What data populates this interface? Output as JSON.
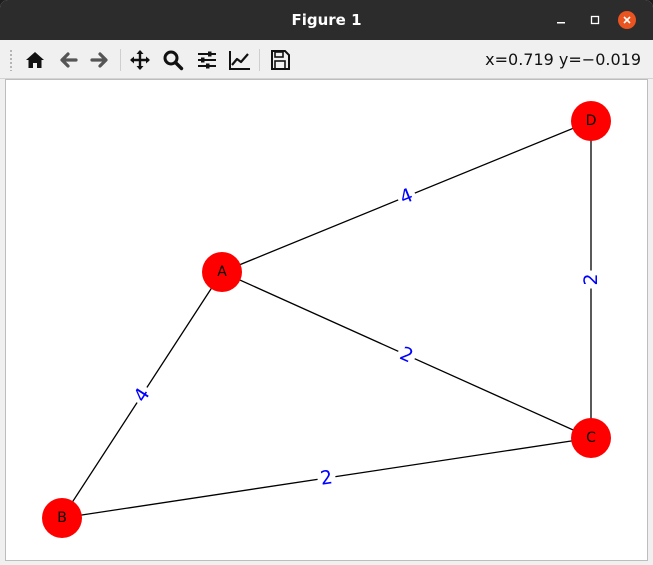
{
  "window": {
    "title": "Figure 1",
    "minimize_icon": "minimize-icon",
    "maximize_icon": "maximize-icon",
    "close_icon": "close-icon",
    "close_color": "#e95420"
  },
  "toolbar": {
    "buttons": [
      {
        "name": "home-button",
        "icon": "home-icon"
      },
      {
        "name": "back-button",
        "icon": "arrow-left-icon"
      },
      {
        "name": "forward-button",
        "icon": "arrow-right-icon"
      },
      {
        "name": "pan-button",
        "icon": "move-icon"
      },
      {
        "name": "zoom-button",
        "icon": "magnifier-icon"
      },
      {
        "name": "configure-subplots-button",
        "icon": "sliders-icon"
      },
      {
        "name": "edit-axis-button",
        "icon": "line-chart-icon"
      },
      {
        "name": "save-button",
        "icon": "floppy-disk-icon"
      }
    ],
    "coords_text": "x=0.719 y=−0.019"
  },
  "graph": {
    "node_color": "#ff0000",
    "edge_color": "#000000",
    "edge_label_color": "#0000ff",
    "nodes": [
      {
        "id": "A",
        "label": "A"
      },
      {
        "id": "B",
        "label": "B"
      },
      {
        "id": "C",
        "label": "C"
      },
      {
        "id": "D",
        "label": "D"
      }
    ],
    "edges": [
      {
        "from": "A",
        "to": "D",
        "weight": "4"
      },
      {
        "from": "A",
        "to": "B",
        "weight": "4"
      },
      {
        "from": "A",
        "to": "C",
        "weight": "2"
      },
      {
        "from": "B",
        "to": "C",
        "weight": "2"
      },
      {
        "from": "C",
        "to": "D",
        "weight": "2"
      }
    ]
  }
}
